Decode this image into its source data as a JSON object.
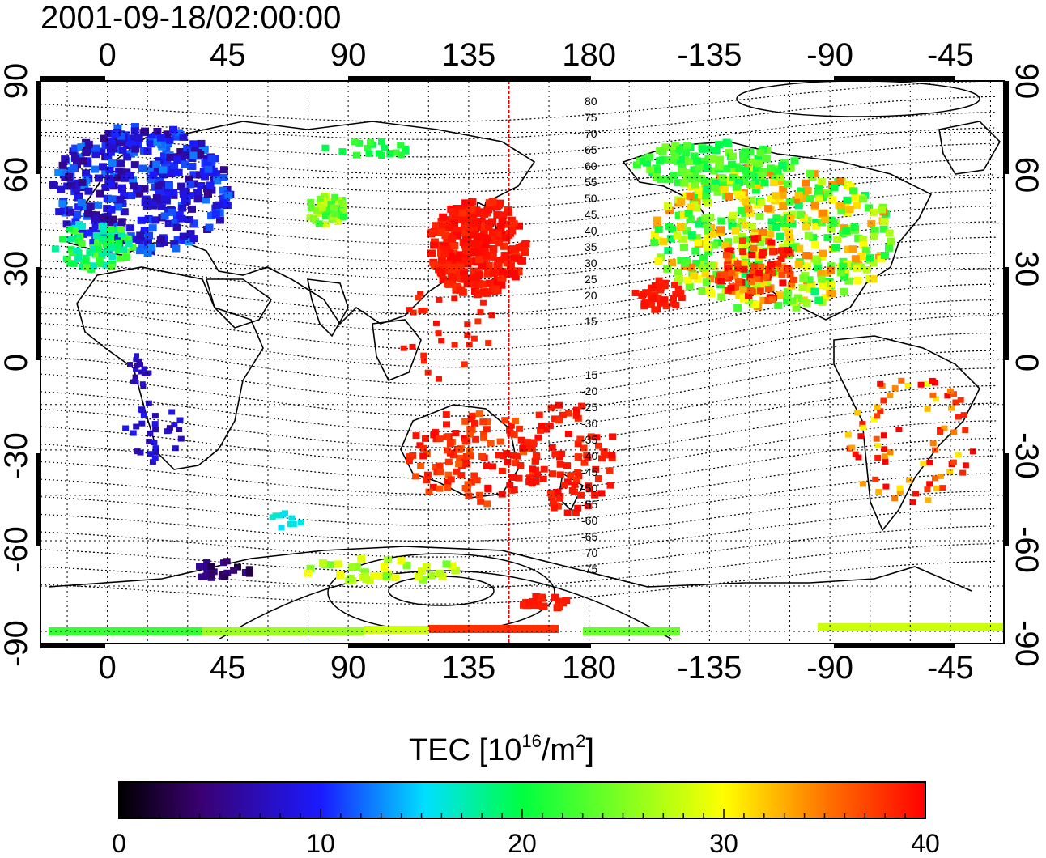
{
  "title": "2001-09-18/02:00:00",
  "map": {
    "lon_ticks": [
      "0",
      "45",
      "90",
      "135",
      "180",
      "-135",
      "-90",
      "-45"
    ],
    "lat_ticks": [
      "90",
      "60",
      "30",
      "0",
      "-30",
      "-60",
      "-90"
    ],
    "terminator_longitude": 150,
    "contour_labels": [
      "80",
      "75",
      "70",
      "65",
      "60",
      "55",
      "50",
      "45",
      "40",
      "35",
      "30",
      "25",
      "20",
      "15",
      "-15",
      "-20",
      "-25",
      "-30",
      "-35",
      "-40",
      "-45",
      "-50",
      "-55",
      "-60",
      "-65",
      "-70",
      "-75"
    ],
    "tec_regions": [
      {
        "name": "europe",
        "tec": 9
      },
      {
        "name": "north-america",
        "tec": 33
      },
      {
        "name": "east-asia",
        "tec": 39
      },
      {
        "name": "australia",
        "tec": 38
      },
      {
        "name": "antarctica",
        "tec": 27
      }
    ]
  },
  "colorbar": {
    "title": "TEC  [10",
    "title_exp": "16",
    "title_unit": "/m",
    "title_unit_exp": "2",
    "title_end": "]",
    "min": 0,
    "max": 40,
    "ticks": [
      "0",
      "10",
      "20",
      "30",
      "40"
    ],
    "colors": [
      "#000000",
      "#3a0070",
      "#1a1aff",
      "#00e0ff",
      "#00ff40",
      "#ffff00",
      "#ff7000",
      "#ff0000"
    ]
  }
}
